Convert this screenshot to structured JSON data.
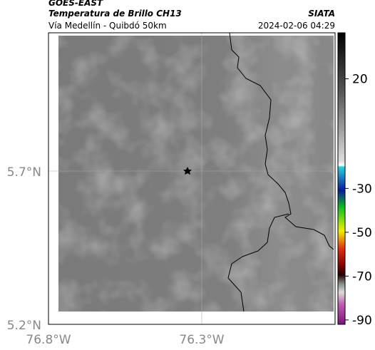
{
  "header": {
    "title": "GOES-EAST",
    "subtitle": "Temperatura de Brillo CH13",
    "source": "SIATA",
    "location": "Vía Medellín - Quibdó 50km",
    "datetime": "2024-02-06 04:29"
  },
  "map": {
    "lat_ticks": [
      "5.7°N",
      "5.2°N"
    ],
    "lon_ticks": [
      "76.8°W",
      "76.3°W"
    ]
  },
  "colorbar": {
    "range": [
      41,
      -92
    ],
    "ticks": [
      20,
      -30,
      -50,
      -70,
      -90
    ]
  }
}
